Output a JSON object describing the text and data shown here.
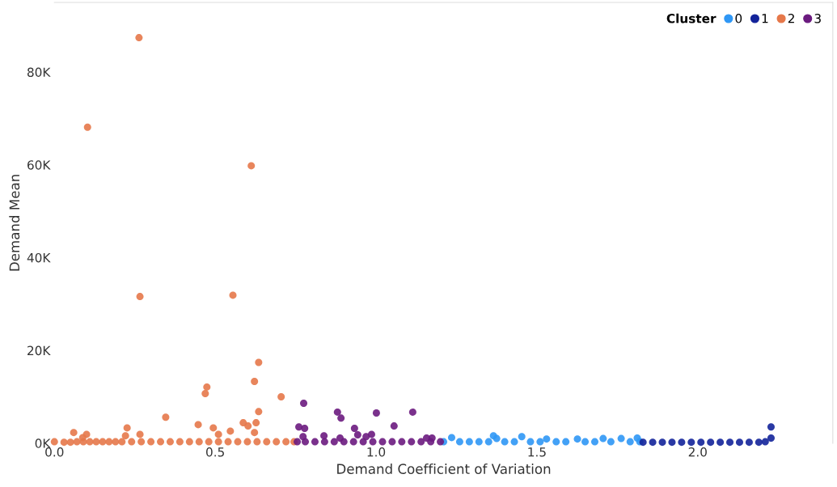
{
  "chart_data": {
    "type": "scatter",
    "xlabel": "Demand Coefficient of Variation",
    "ylabel": "Demand Mean",
    "legend_title": "Cluster",
    "legend": "top right",
    "grid": false,
    "marker": "circle",
    "xlim": [
      0,
      2.42
    ],
    "ylim": [
      0,
      95000
    ],
    "xticks": [
      {
        "value": 0,
        "label": "0.0"
      },
      {
        "value": 0.5,
        "label": "0.5"
      },
      {
        "value": 1,
        "label": "1.0"
      },
      {
        "value": 1.5,
        "label": "1.5"
      },
      {
        "value": 2,
        "label": "2.0"
      }
    ],
    "yticks": [
      {
        "value": 0,
        "label": "0K"
      },
      {
        "value": 20000,
        "label": "20K"
      },
      {
        "value": 40000,
        "label": "40K"
      },
      {
        "value": 60000,
        "label": "60K"
      },
      {
        "value": 80000,
        "label": "80K"
      }
    ],
    "series": [
      {
        "name": "0",
        "color": "#2f97f5",
        "x": [
          1.21,
          1.235,
          1.26,
          1.29,
          1.32,
          1.35,
          1.365,
          1.375,
          1.4,
          1.43,
          1.453,
          1.48,
          1.51,
          1.53,
          1.56,
          1.59,
          1.626,
          1.65,
          1.68,
          1.706,
          1.73,
          1.762,
          1.79,
          1.812,
          1.82
        ],
        "values": [
          300,
          1200,
          300,
          300,
          300,
          300,
          1600,
          1000,
          300,
          300,
          1400,
          300,
          300,
          900,
          300,
          300,
          900,
          300,
          300,
          1000,
          300,
          1000,
          300,
          1100,
          300
        ]
      },
      {
        "name": "1",
        "color": "#13239a",
        "x": [
          1.83,
          1.86,
          1.89,
          1.92,
          1.95,
          1.98,
          2.01,
          2.04,
          2.07,
          2.1,
          2.13,
          2.16,
          2.19,
          2.21,
          2.228,
          2.228
        ],
        "values": [
          200,
          200,
          200,
          200,
          200,
          200,
          200,
          200,
          200,
          200,
          200,
          200,
          200,
          300,
          1100,
          3500
        ]
      },
      {
        "name": "2",
        "color": "#e6784a",
        "x": [
          0.0,
          0.03,
          0.05,
          0.07,
          0.09,
          0.11,
          0.13,
          0.15,
          0.17,
          0.19,
          0.21,
          0.24,
          0.27,
          0.3,
          0.33,
          0.36,
          0.39,
          0.42,
          0.45,
          0.48,
          0.51,
          0.54,
          0.57,
          0.6,
          0.63,
          0.66,
          0.69,
          0.72,
          0.745,
          0.263,
          0.103,
          0.612,
          0.266,
          0.555,
          0.635,
          0.622,
          0.474,
          0.469,
          0.705,
          0.635,
          0.346,
          0.447,
          0.494,
          0.587,
          0.602,
          0.627,
          0.622,
          0.547,
          0.51,
          0.226,
          0.221,
          0.266,
          0.06,
          0.1,
          0.088
        ],
        "values": [
          300,
          200,
          200,
          300,
          300,
          300,
          300,
          300,
          300,
          300,
          300,
          300,
          300,
          300,
          300,
          300,
          300,
          300,
          300,
          300,
          300,
          300,
          300,
          300,
          300,
          300,
          300,
          300,
          300,
          87400,
          68100,
          59800,
          31600,
          31900,
          17400,
          13300,
          12100,
          10700,
          10000,
          6800,
          5600,
          4000,
          3300,
          4400,
          3700,
          4400,
          2300,
          2600,
          1900,
          3300,
          1600,
          1900,
          2300,
          1900,
          1200
        ]
      },
      {
        "name": "3",
        "color": "#6b1b7f",
        "x": [
          0.755,
          0.78,
          0.81,
          0.84,
          0.87,
          0.9,
          0.93,
          0.96,
          0.99,
          1.02,
          1.05,
          1.08,
          1.11,
          1.14,
          1.17,
          1.2,
          0.775,
          0.76,
          0.778,
          0.773,
          0.838,
          0.88,
          0.891,
          1.001,
          1.114,
          1.056,
          0.933,
          0.943,
          0.986,
          0.969,
          1.157,
          1.174,
          0.888
        ],
        "values": [
          300,
          300,
          300,
          300,
          300,
          300,
          300,
          300,
          300,
          300,
          300,
          300,
          300,
          300,
          300,
          300,
          8600,
          3500,
          3200,
          1400,
          1600,
          6700,
          5400,
          6500,
          6700,
          3700,
          3200,
          1800,
          1900,
          1400,
          1100,
          1100,
          1100
        ]
      }
    ]
  }
}
